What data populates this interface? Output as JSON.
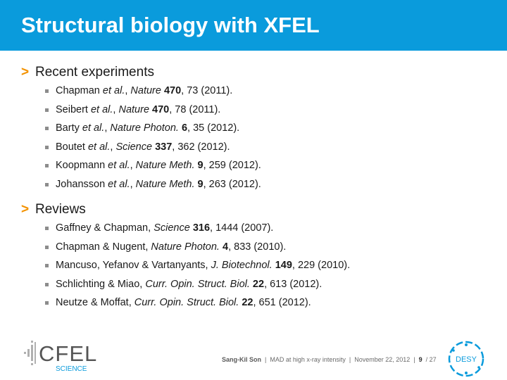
{
  "slide": {
    "title": "Structural biology with XFEL"
  },
  "sections": [
    {
      "label": "Recent experiments",
      "refs": [
        {
          "authors": "Chapman ",
          "etal": "et al.",
          "sep": ", ",
          "journal": "Nature",
          "sp": " ",
          "volume": "470",
          "rest": ", 73 (2011)."
        },
        {
          "authors": "Seibert ",
          "etal": "et al.",
          "sep": ", ",
          "journal": "Nature",
          "sp": " ",
          "volume": "470",
          "rest": ", 78 (2011)."
        },
        {
          "authors": "Barty ",
          "etal": "et al.",
          "sep": ", ",
          "journal": "Nature Photon.",
          "sp": " ",
          "volume": "6",
          "rest": ", 35 (2012)."
        },
        {
          "authors": "Boutet ",
          "etal": "et al.",
          "sep": ", ",
          "journal": "Science",
          "sp": " ",
          "volume": "337",
          "rest": ", 362 (2012)."
        },
        {
          "authors": "Koopmann ",
          "etal": "et al.",
          "sep": ", ",
          "journal": "Nature Meth.",
          "sp": " ",
          "volume": "9",
          "rest": ", 259 (2012)."
        },
        {
          "authors": "Johansson ",
          "etal": "et al.",
          "sep": ", ",
          "journal": "Nature Meth.",
          "sp": " ",
          "volume": "9",
          "rest": ", 263 (2012)."
        }
      ]
    },
    {
      "label": "Reviews",
      "refs": [
        {
          "authors": "Gaffney & Chapman",
          "etal": "",
          "sep": ", ",
          "journal": "Science",
          "sp": " ",
          "volume": "316",
          "rest": ", 1444 (2007)."
        },
        {
          "authors": "Chapman & Nugent",
          "etal": "",
          "sep": ", ",
          "journal": "Nature Photon.",
          "sp": " ",
          "volume": "4",
          "rest": ", 833 (2010)."
        },
        {
          "authors": "Mancuso, Yefanov & Vartanyants",
          "etal": "",
          "sep": ", ",
          "journal": "J. Biotechnol.",
          "sp": " ",
          "volume": "149",
          "rest": ", 229 (2010)."
        },
        {
          "authors": "Schlichting & Miao",
          "etal": "",
          "sep": ", ",
          "journal": "Curr. Opin. Struct. Biol.",
          "sp": " ",
          "volume": "22",
          "rest": ", 613 (2012)."
        },
        {
          "authors": "Neutze & Moffat",
          "etal": "",
          "sep": ", ",
          "journal": "Curr. Opin. Struct. Biol.",
          "sp": " ",
          "volume": "22",
          "rest": ", 651 (2012)."
        }
      ]
    }
  ],
  "footer": {
    "author": "Sang-Kil Son",
    "divider1": "  |  ",
    "talk": "MAD at high x-ray intensity",
    "divider2": "  |  ",
    "date": "November 22, 2012",
    "divider3": "  |  ",
    "page": "9",
    "total": "  / 27"
  },
  "logos": {
    "cfel_text": "CFEL",
    "cfel_sub": "SCIENCE",
    "desy_text": "DESY"
  },
  "colors": {
    "title_bar": "#0a9bdc",
    "chevron": "#f39200",
    "desy": "#0a9bdc"
  }
}
